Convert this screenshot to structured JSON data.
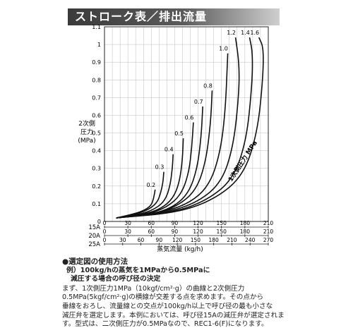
{
  "page": {
    "title": "ストローク表／排出流量"
  },
  "chart_data": {
    "type": "line",
    "ylabel_lines": [
      "2次側",
      "圧力",
      "(MPa)"
    ],
    "xlabel": "蒸気流量 (kg/h)",
    "ylim": [
      0,
      1.1
    ],
    "y_ticks": [
      0,
      0.1,
      0.2,
      0.3,
      0.4,
      0.5,
      0.6,
      0.7,
      0.8,
      0.9,
      1.0,
      1.1
    ],
    "y_tick_labels": [
      "0",
      "0.1",
      "0.2",
      "0.3",
      "0.4",
      "0.5",
      "0.6",
      "0.7",
      "0.8",
      "0.9",
      "1",
      "1.1"
    ],
    "x_scales": [
      {
        "name": "15A",
        "ticks": [
          "0",
          "30",
          "60",
          "90",
          "120",
          "150",
          "180",
          "210"
        ]
      },
      {
        "name": "20A",
        "ticks": [
          "0",
          "30",
          "60",
          "90",
          "120",
          "150",
          "180",
          "210"
        ]
      },
      {
        "name": "25A",
        "ticks": [
          "0",
          "30",
          "60",
          "90",
          "120",
          "150",
          "180",
          "210",
          "240",
          "270"
        ]
      }
    ],
    "grid": true,
    "family_label": "1次側圧力 MPa",
    "series": [
      {
        "name": "0.2",
        "points": [
          [
            15,
            0.02
          ],
          [
            35,
            0.04
          ],
          [
            50,
            0.06
          ],
          [
            60,
            0.09
          ],
          [
            63,
            0.13
          ],
          [
            65,
            0.18
          ]
        ]
      },
      {
        "name": "0.3",
        "points": [
          [
            15,
            0.02
          ],
          [
            40,
            0.04
          ],
          [
            58,
            0.07
          ],
          [
            68,
            0.11
          ],
          [
            72,
            0.16
          ],
          [
            75,
            0.22
          ],
          [
            76,
            0.28
          ]
        ]
      },
      {
        "name": "0.4",
        "points": [
          [
            15,
            0.02
          ],
          [
            45,
            0.04
          ],
          [
            65,
            0.07
          ],
          [
            78,
            0.12
          ],
          [
            84,
            0.2
          ],
          [
            87,
            0.3
          ],
          [
            88,
            0.38
          ]
        ]
      },
      {
        "name": "0.5",
        "points": [
          [
            15,
            0.02
          ],
          [
            50,
            0.04
          ],
          [
            72,
            0.07
          ],
          [
            88,
            0.13
          ],
          [
            96,
            0.22
          ],
          [
            100,
            0.35
          ],
          [
            101,
            0.47
          ]
        ]
      },
      {
        "name": "0.6",
        "points": [
          [
            15,
            0.02
          ],
          [
            55,
            0.04
          ],
          [
            80,
            0.08
          ],
          [
            98,
            0.15
          ],
          [
            108,
            0.27
          ],
          [
            112,
            0.42
          ],
          [
            114,
            0.56
          ]
        ]
      },
      {
        "name": "0.7",
        "points": [
          [
            15,
            0.02
          ],
          [
            60,
            0.04
          ],
          [
            88,
            0.08
          ],
          [
            108,
            0.16
          ],
          [
            119,
            0.3
          ],
          [
            124,
            0.48
          ],
          [
            126,
            0.65
          ]
        ]
      },
      {
        "name": "0.8",
        "points": [
          [
            15,
            0.02
          ],
          [
            64,
            0.04
          ],
          [
            95,
            0.09
          ],
          [
            118,
            0.18
          ],
          [
            130,
            0.34
          ],
          [
            136,
            0.55
          ],
          [
            138,
            0.74
          ]
        ]
      },
      {
        "name": "1.0",
        "points": [
          [
            15,
            0.02
          ],
          [
            72,
            0.05
          ],
          [
            108,
            0.1
          ],
          [
            134,
            0.2
          ],
          [
            148,
            0.38
          ],
          [
            155,
            0.62
          ],
          [
            158,
            0.95
          ]
        ]
      },
      {
        "name": "1.2",
        "points": [
          [
            15,
            0.02
          ],
          [
            80,
            0.05
          ],
          [
            120,
            0.11
          ],
          [
            150,
            0.22
          ],
          [
            165,
            0.42
          ],
          [
            172,
            0.7
          ],
          [
            173,
            0.88
          ],
          [
            168,
            1.04
          ]
        ]
      },
      {
        "name": "1.4",
        "points": [
          [
            15,
            0.02
          ],
          [
            88,
            0.05
          ],
          [
            132,
            0.12
          ],
          [
            165,
            0.24
          ],
          [
            182,
            0.46
          ],
          [
            189,
            0.76
          ],
          [
            190,
            0.95
          ],
          [
            186,
            1.04
          ]
        ]
      },
      {
        "name": "1.6",
        "points": [
          [
            15,
            0.02
          ],
          [
            95,
            0.05
          ],
          [
            143,
            0.13
          ],
          [
            178,
            0.26
          ],
          [
            196,
            0.5
          ],
          [
            203,
            0.8
          ],
          [
            204,
            0.98
          ],
          [
            198,
            1.04
          ]
        ]
      }
    ]
  },
  "usage": {
    "heading": "●選定図の使用方法",
    "example_line1": "例）100kg/hの蒸気を1MPaから0.5MPaに",
    "example_line2": "減圧する場合の呼び径の決定",
    "body_lines": [
      "まず、1次側圧力1MPa（10kgf/cm²·g）の曲線と2次側圧力",
      "0.5MPa(5kgf/cm²·g)の横線が交差する点を求めます。その点から",
      "垂線をおろし、流量線との交点が100kg/h以上で呼び径の最も小さな",
      "減圧弁を選定します。本例においては、呼び径15Aの減圧弁が選定されま",
      "す。型式は、二次側圧力が0.5MPaなので、REC1-6(F)になります。"
    ]
  }
}
